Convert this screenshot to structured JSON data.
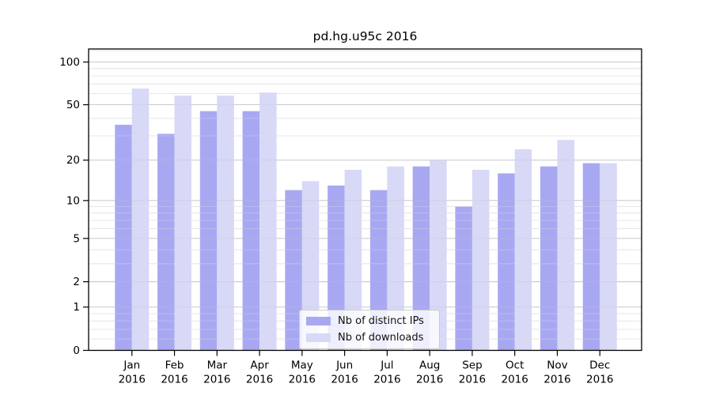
{
  "title": "pd.hg.u95c 2016",
  "legend": {
    "items": [
      {
        "label": "Nb of distinct IPs",
        "color": "#a8a8f2"
      },
      {
        "label": "Nb of downloads",
        "color": "#d8d8f7"
      }
    ]
  },
  "chart_data": {
    "type": "bar",
    "title": "pd.hg.u95c 2016",
    "categories": [
      "Jan",
      "Feb",
      "Mar",
      "Apr",
      "May",
      "Jun",
      "Jul",
      "Aug",
      "Sep",
      "Oct",
      "Nov",
      "Dec"
    ],
    "x_year_label": "2016",
    "series": [
      {
        "name": "Nb of distinct IPs",
        "color": "#a8a8f2",
        "values": [
          36,
          31,
          45,
          45,
          12,
          13,
          12,
          18,
          9,
          16,
          18,
          19
        ]
      },
      {
        "name": "Nb of downloads",
        "color": "#d8d8f7",
        "values": [
          65,
          58,
          58,
          61,
          14,
          17,
          18,
          20,
          17,
          24,
          28,
          19
        ]
      }
    ],
    "xlabel": "",
    "ylabel": "",
    "y_axis": {
      "scale": "log10(1+v)",
      "ticks": [
        0,
        1,
        2,
        5,
        10,
        20,
        50,
        100
      ],
      "minor_gridlines": [
        0.2,
        0.4,
        0.6,
        0.8,
        3,
        4,
        6,
        7,
        8,
        9,
        30,
        40,
        60,
        70,
        80,
        90,
        120
      ],
      "ylim": [
        0,
        124
      ]
    },
    "grid": true,
    "legend_position": "lower center",
    "colors": {
      "bar_ips": "#a8a8f2",
      "bar_downloads": "#d8d8f7",
      "grid_major": "#c4c4c8",
      "grid_minor": "#e4e4e8",
      "axis": "#000000",
      "text": "#000000"
    }
  }
}
